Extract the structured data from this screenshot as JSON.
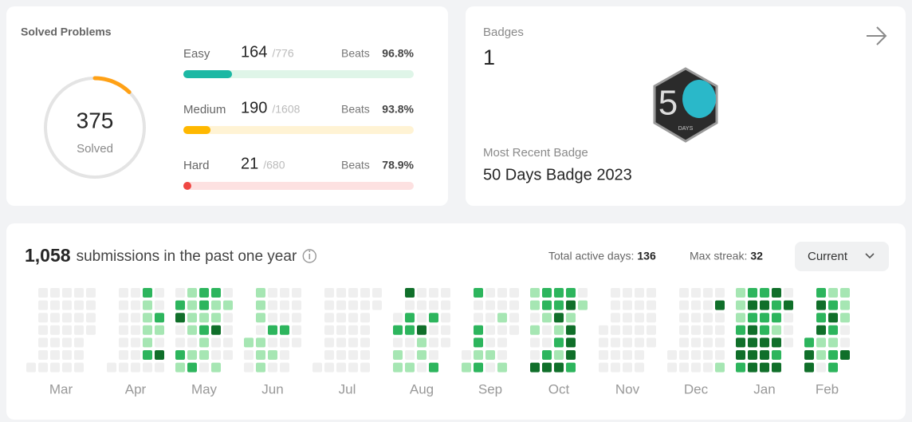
{
  "solved": {
    "title": "Solved Problems",
    "count": 375,
    "caption": "Solved",
    "beats_text": "Beats",
    "arc_color": "#ffa116",
    "rows": [
      {
        "name": "Easy",
        "solved": 164,
        "total": {
          "value": 776,
          "label": "/776"
        },
        "beats": {
          "value": 96.8,
          "label": "96.8%"
        },
        "color": "#1cb8a4",
        "track": "#dff5e8"
      },
      {
        "name": "Medium",
        "solved": 190,
        "total": {
          "value": 1608,
          "label": "/1608"
        },
        "beats": {
          "value": 93.8,
          "label": "93.8%"
        },
        "color": "#ffb800",
        "track": "#fff3d4"
      },
      {
        "name": "Hard",
        "solved": 21,
        "total": {
          "value": 680,
          "label": "/680"
        },
        "beats": {
          "value": 78.9,
          "label": "78.9%"
        },
        "color": "#ef4743",
        "track": "#fde1e1"
      }
    ]
  },
  "badges": {
    "title": "Badges",
    "count": 1,
    "recent_title": "Most Recent Badge",
    "recent_name": "50 Days Badge 2023",
    "icon_digit": "5",
    "icon_caption": "DAYS"
  },
  "submissions": {
    "count": {
      "value": 1058,
      "label": "1,058"
    },
    "caption": "submissions in the past one year",
    "active_label": "Total active days:",
    "active_days": 136,
    "streak_label": "Max streak:",
    "max_streak": 32,
    "filter": "Current",
    "level_colors": [
      "#efefef",
      "#a6e6b3",
      "#2db55d",
      "#106f2a"
    ],
    "months": [
      {
        "name": "Mar",
        "weeks": [
          [
            null,
            null,
            null,
            null,
            null,
            null,
            0
          ],
          [
            0,
            0,
            0,
            0,
            0,
            0,
            0
          ],
          [
            0,
            0,
            0,
            0,
            0,
            0,
            0
          ],
          [
            0,
            0,
            0,
            0,
            0,
            0,
            0
          ],
          [
            0,
            0,
            0,
            0,
            0,
            0,
            0
          ],
          [
            0,
            0,
            0,
            0,
            null,
            null,
            null
          ]
        ]
      },
      {
        "name": "Apr",
        "weeks": [
          [
            null,
            null,
            null,
            null,
            null,
            null,
            0
          ],
          [
            0,
            0,
            0,
            0,
            0,
            0,
            0
          ],
          [
            0,
            0,
            0,
            0,
            0,
            0,
            0
          ],
          [
            2,
            1,
            1,
            1,
            1,
            2,
            0
          ],
          [
            0,
            0,
            2,
            1,
            0,
            3,
            0
          ]
        ]
      },
      {
        "name": "May",
        "weeks": [
          [
            0,
            2,
            3,
            0,
            0,
            2,
            1
          ],
          [
            1,
            1,
            1,
            1,
            0,
            1,
            2
          ],
          [
            2,
            2,
            1,
            2,
            1,
            1,
            0
          ],
          [
            2,
            1,
            1,
            3,
            0,
            0,
            1
          ],
          [
            0,
            1,
            0,
            0,
            0,
            0,
            null
          ]
        ]
      },
      {
        "name": "Jun",
        "weeks": [
          [
            null,
            null,
            null,
            null,
            1,
            0,
            0
          ],
          [
            1,
            1,
            1,
            0,
            1,
            1,
            1
          ],
          [
            0,
            0,
            0,
            2,
            0,
            1,
            0
          ],
          [
            0,
            0,
            0,
            2,
            0,
            0,
            0
          ],
          [
            0,
            0,
            0,
            0,
            0,
            null,
            null
          ]
        ]
      },
      {
        "name": "Jul",
        "weeks": [
          [
            null,
            null,
            null,
            null,
            null,
            null,
            0
          ],
          [
            0,
            0,
            0,
            0,
            0,
            0,
            0
          ],
          [
            0,
            0,
            0,
            0,
            0,
            0,
            0
          ],
          [
            0,
            0,
            0,
            0,
            0,
            0,
            0
          ],
          [
            0,
            0,
            0,
            0,
            0,
            0,
            0
          ],
          [
            0,
            0,
            null,
            null,
            null,
            null,
            null
          ]
        ]
      },
      {
        "name": "Aug",
        "weeks": [
          [
            null,
            null,
            0,
            2,
            0,
            1,
            1
          ],
          [
            3,
            0,
            2,
            2,
            0,
            0,
            1
          ],
          [
            0,
            0,
            0,
            3,
            1,
            1,
            0
          ],
          [
            0,
            0,
            2,
            0,
            0,
            0,
            2
          ],
          [
            0,
            0,
            0,
            0,
            0,
            null,
            null
          ]
        ]
      },
      {
        "name": "Sep",
        "weeks": [
          [
            null,
            null,
            null,
            null,
            null,
            0,
            1
          ],
          [
            2,
            0,
            0,
            2,
            2,
            1,
            2
          ],
          [
            0,
            0,
            0,
            0,
            0,
            1,
            0
          ],
          [
            0,
            0,
            1,
            0,
            0,
            0,
            1
          ],
          [
            0,
            0,
            0,
            0,
            null,
            null,
            null
          ]
        ]
      },
      {
        "name": "Oct",
        "weeks": [
          [
            1,
            1,
            0,
            1,
            0,
            0,
            3
          ],
          [
            2,
            2,
            1,
            0,
            0,
            2,
            3
          ],
          [
            2,
            2,
            3,
            1,
            2,
            1,
            3
          ],
          [
            2,
            3,
            1,
            3,
            3,
            3,
            2
          ],
          [
            0,
            1,
            null,
            null,
            null,
            null,
            null
          ]
        ]
      },
      {
        "name": "Nov",
        "weeks": [
          [
            null,
            null,
            null,
            0,
            0,
            0,
            0
          ],
          [
            0,
            0,
            0,
            0,
            0,
            0,
            0
          ],
          [
            0,
            0,
            0,
            0,
            0,
            0,
            0
          ],
          [
            0,
            0,
            0,
            0,
            0,
            0,
            0
          ],
          [
            0,
            0,
            0,
            0,
            0,
            null,
            null
          ]
        ]
      },
      {
        "name": "Dec",
        "weeks": [
          [
            null,
            null,
            null,
            null,
            null,
            0,
            0
          ],
          [
            0,
            0,
            0,
            0,
            0,
            0,
            0
          ],
          [
            0,
            0,
            0,
            0,
            0,
            0,
            0
          ],
          [
            0,
            0,
            0,
            0,
            0,
            0,
            0
          ],
          [
            0,
            3,
            0,
            0,
            0,
            0,
            1
          ]
        ]
      },
      {
        "name": "Jan",
        "weeks": [
          [
            1,
            1,
            1,
            2,
            3,
            3,
            2
          ],
          [
            2,
            3,
            2,
            3,
            3,
            3,
            3
          ],
          [
            2,
            3,
            2,
            2,
            3,
            3,
            3
          ],
          [
            3,
            2,
            2,
            1,
            3,
            2,
            3
          ],
          [
            0,
            3,
            0,
            0,
            0,
            null,
            null
          ]
        ]
      },
      {
        "name": "Feb",
        "weeks": [
          [
            null,
            null,
            null,
            null,
            2,
            3,
            3
          ],
          [
            2,
            3,
            2,
            3,
            1,
            1,
            0
          ],
          [
            1,
            2,
            3,
            2,
            1,
            2,
            2
          ],
          [
            1,
            1,
            1,
            0,
            0,
            3,
            null
          ]
        ]
      }
    ]
  }
}
